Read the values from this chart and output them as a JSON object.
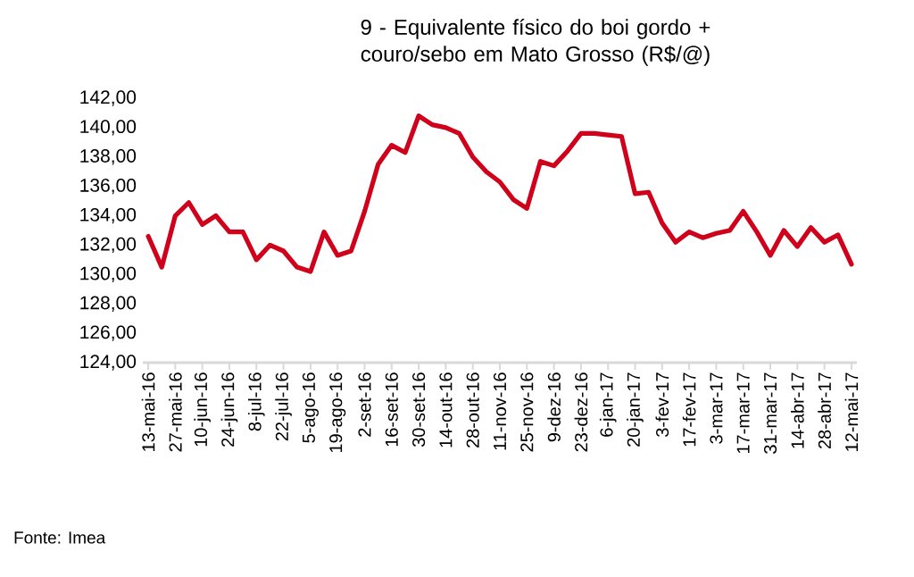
{
  "chart_data": {
    "type": "line",
    "title": "9 - Equivalente físico do boi gordo + couro/sebo em Mato Grosso (R$/@)",
    "categories": [
      "13-mai-16",
      null,
      "27-mai-16",
      null,
      "10-jun-16",
      null,
      "24-jun-16",
      null,
      "8-jul-16",
      null,
      "22-jul-16",
      null,
      "5-ago-16",
      null,
      "19-ago-16",
      null,
      "2-set-16",
      null,
      "16-set-16",
      null,
      "30-set-16",
      null,
      "14-out-16",
      null,
      "28-out-16",
      null,
      "11-nov-16",
      null,
      "25-nov-16",
      null,
      "9-dez-16",
      null,
      "23-dez-16",
      null,
      "6-jan-17",
      null,
      "20-jan-17",
      null,
      "3-fev-17",
      null,
      "17-fev-17",
      null,
      "3-mar-17",
      null,
      "17-mar-17",
      null,
      "31-mar-17",
      null,
      "14-abr-17",
      null,
      "28-abr-17",
      null,
      "12-mai-17"
    ],
    "series": [
      {
        "color": "#d0021b",
        "values": [
          132.6,
          130.5,
          134.0,
          134.9,
          133.4,
          134.0,
          132.9,
          132.9,
          131.0,
          132.0,
          131.6,
          130.5,
          130.2,
          132.9,
          131.3,
          131.6,
          134.3,
          137.5,
          138.8,
          138.3,
          140.8,
          140.2,
          140.0,
          139.6,
          138.0,
          137.0,
          136.3,
          135.1,
          134.5,
          137.7,
          137.4,
          138.4,
          139.6,
          139.6,
          139.5,
          139.4,
          135.5,
          135.6,
          133.5,
          132.2,
          132.9,
          132.5,
          132.8,
          133.0,
          134.3,
          132.9,
          131.3,
          133.0,
          131.9,
          133.2,
          132.2,
          132.7,
          130.7
        ]
      }
    ],
    "ylim": [
      124,
      142
    ],
    "yticks": [
      {
        "value": 124,
        "label": "124,00"
      },
      {
        "value": 126,
        "label": "126,00"
      },
      {
        "value": 128,
        "label": "128,00"
      },
      {
        "value": 130,
        "label": "130,00"
      },
      {
        "value": 132,
        "label": "132,00"
      },
      {
        "value": 134,
        "label": "134,00"
      },
      {
        "value": 136,
        "label": "136,00"
      },
      {
        "value": 138,
        "label": "138,00"
      },
      {
        "value": 140,
        "label": "140,00"
      },
      {
        "value": 142,
        "label": "142,00"
      }
    ],
    "grid": false,
    "marker": "none",
    "line_style": "solid",
    "annotations": [
      "Fonte: Imea"
    ]
  }
}
